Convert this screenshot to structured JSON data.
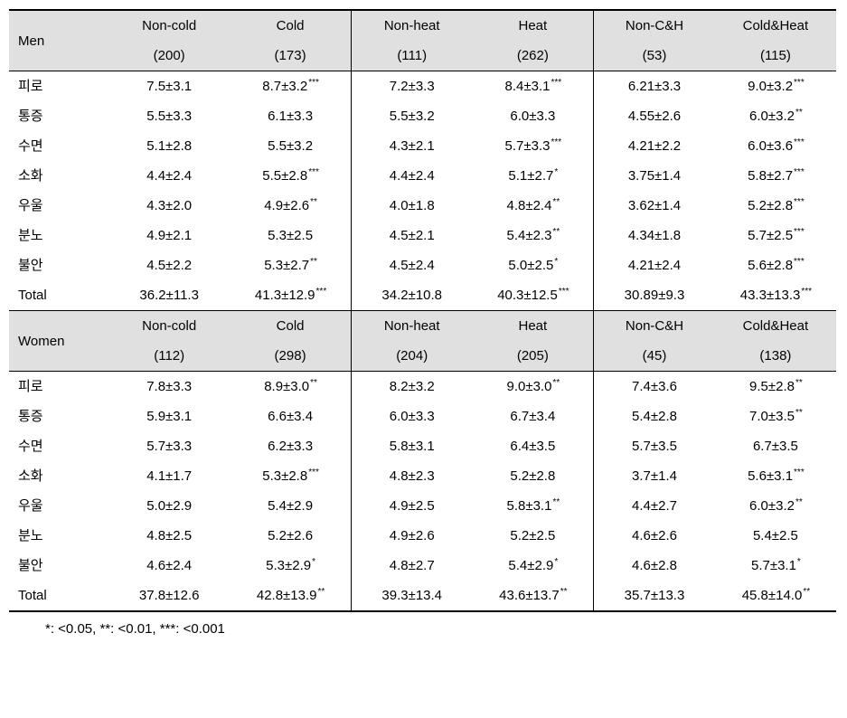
{
  "sections": [
    {
      "label": "Men",
      "columns": [
        {
          "name": "Non-cold",
          "n": "(200)"
        },
        {
          "name": "Cold",
          "n": "(173)"
        },
        {
          "name": "Non-heat",
          "n": "(111)"
        },
        {
          "name": "Heat",
          "n": "(262)"
        },
        {
          "name": "Non-C&H",
          "n": "(53)"
        },
        {
          "name": "Cold&Heat",
          "n": "(115)"
        }
      ],
      "rows": [
        {
          "label": "피로",
          "cells": [
            {
              "v": "7.5±3.1",
              "s": ""
            },
            {
              "v": "8.7±3.2",
              "s": "***"
            },
            {
              "v": "7.2±3.3",
              "s": ""
            },
            {
              "v": "8.4±3.1",
              "s": "***"
            },
            {
              "v": "6.21±3.3",
              "s": ""
            },
            {
              "v": "9.0±3.2",
              "s": "***"
            }
          ]
        },
        {
          "label": "통증",
          "cells": [
            {
              "v": "5.5±3.3",
              "s": ""
            },
            {
              "v": "6.1±3.3",
              "s": ""
            },
            {
              "v": "5.5±3.2",
              "s": ""
            },
            {
              "v": "6.0±3.3",
              "s": ""
            },
            {
              "v": "4.55±2.6",
              "s": ""
            },
            {
              "v": "6.0±3.2",
              "s": "**"
            }
          ]
        },
        {
          "label": "수면",
          "cells": [
            {
              "v": "5.1±2.8",
              "s": ""
            },
            {
              "v": "5.5±3.2",
              "s": ""
            },
            {
              "v": "4.3±2.1",
              "s": ""
            },
            {
              "v": "5.7±3.3",
              "s": "***"
            },
            {
              "v": "4.21±2.2",
              "s": ""
            },
            {
              "v": "6.0±3.6",
              "s": "***"
            }
          ]
        },
        {
          "label": "소화",
          "cells": [
            {
              "v": "4.4±2.4",
              "s": ""
            },
            {
              "v": "5.5±2.8",
              "s": "***"
            },
            {
              "v": "4.4±2.4",
              "s": ""
            },
            {
              "v": "5.1±2.7",
              "s": "*"
            },
            {
              "v": "3.75±1.4",
              "s": ""
            },
            {
              "v": "5.8±2.7",
              "s": "***"
            }
          ]
        },
        {
          "label": "우울",
          "cells": [
            {
              "v": "4.3±2.0",
              "s": ""
            },
            {
              "v": "4.9±2.6",
              "s": "**"
            },
            {
              "v": "4.0±1.8",
              "s": ""
            },
            {
              "v": "4.8±2.4",
              "s": "**"
            },
            {
              "v": "3.62±1.4",
              "s": ""
            },
            {
              "v": "5.2±2.8",
              "s": "***"
            }
          ]
        },
        {
          "label": "분노",
          "cells": [
            {
              "v": "4.9±2.1",
              "s": ""
            },
            {
              "v": "5.3±2.5",
              "s": ""
            },
            {
              "v": "4.5±2.1",
              "s": ""
            },
            {
              "v": "5.4±2.3",
              "s": "**"
            },
            {
              "v": "4.34±1.8",
              "s": ""
            },
            {
              "v": "5.7±2.5",
              "s": "***"
            }
          ]
        },
        {
          "label": "불안",
          "cells": [
            {
              "v": "4.5±2.2",
              "s": ""
            },
            {
              "v": "5.3±2.7",
              "s": "**"
            },
            {
              "v": "4.5±2.4",
              "s": ""
            },
            {
              "v": "5.0±2.5",
              "s": "*"
            },
            {
              "v": "4.21±2.4",
              "s": ""
            },
            {
              "v": "5.6±2.8",
              "s": "***"
            }
          ]
        },
        {
          "label": "Total",
          "cells": [
            {
              "v": "36.2±11.3",
              "s": ""
            },
            {
              "v": "41.3±12.9",
              "s": "***"
            },
            {
              "v": "34.2±10.8",
              "s": ""
            },
            {
              "v": "40.3±12.5",
              "s": "***"
            },
            {
              "v": "30.89±9.3",
              "s": ""
            },
            {
              "v": "43.3±13.3",
              "s": "***"
            }
          ]
        }
      ]
    },
    {
      "label": "Women",
      "columns": [
        {
          "name": "Non-cold",
          "n": "(112)"
        },
        {
          "name": "Cold",
          "n": "(298)"
        },
        {
          "name": "Non-heat",
          "n": "(204)"
        },
        {
          "name": "Heat",
          "n": "(205)"
        },
        {
          "name": "Non-C&H",
          "n": "(45)"
        },
        {
          "name": "Cold&Heat",
          "n": "(138)"
        }
      ],
      "rows": [
        {
          "label": "피로",
          "cells": [
            {
              "v": "7.8±3.3",
              "s": ""
            },
            {
              "v": "8.9±3.0",
              "s": "**"
            },
            {
              "v": "8.2±3.2",
              "s": ""
            },
            {
              "v": "9.0±3.0",
              "s": "**"
            },
            {
              "v": "7.4±3.6",
              "s": ""
            },
            {
              "v": "9.5±2.8",
              "s": "**"
            }
          ]
        },
        {
          "label": "통증",
          "cells": [
            {
              "v": "5.9±3.1",
              "s": ""
            },
            {
              "v": "6.6±3.4",
              "s": ""
            },
            {
              "v": "6.0±3.3",
              "s": ""
            },
            {
              "v": "6.7±3.4",
              "s": ""
            },
            {
              "v": "5.4±2.8",
              "s": ""
            },
            {
              "v": "7.0±3.5",
              "s": "**"
            }
          ]
        },
        {
          "label": "수면",
          "cells": [
            {
              "v": "5.7±3.3",
              "s": ""
            },
            {
              "v": "6.2±3.3",
              "s": ""
            },
            {
              "v": "5.8±3.1",
              "s": ""
            },
            {
              "v": "6.4±3.5",
              "s": ""
            },
            {
              "v": "5.7±3.5",
              "s": ""
            },
            {
              "v": "6.7±3.5",
              "s": ""
            }
          ]
        },
        {
          "label": "소화",
          "cells": [
            {
              "v": "4.1±1.7",
              "s": ""
            },
            {
              "v": "5.3±2.8",
              "s": "***"
            },
            {
              "v": "4.8±2.3",
              "s": ""
            },
            {
              "v": "5.2±2.8",
              "s": ""
            },
            {
              "v": "3.7±1.4",
              "s": ""
            },
            {
              "v": "5.6±3.1",
              "s": "***"
            }
          ]
        },
        {
          "label": "우울",
          "cells": [
            {
              "v": "5.0±2.9",
              "s": ""
            },
            {
              "v": "5.4±2.9",
              "s": ""
            },
            {
              "v": "4.9±2.5",
              "s": ""
            },
            {
              "v": "5.8±3.1",
              "s": "**"
            },
            {
              "v": "4.4±2.7",
              "s": ""
            },
            {
              "v": "6.0±3.2",
              "s": "**"
            }
          ]
        },
        {
          "label": "분노",
          "cells": [
            {
              "v": "4.8±2.5",
              "s": ""
            },
            {
              "v": "5.2±2.6",
              "s": ""
            },
            {
              "v": "4.9±2.6",
              "s": ""
            },
            {
              "v": "5.2±2.5",
              "s": ""
            },
            {
              "v": "4.6±2.6",
              "s": ""
            },
            {
              "v": "5.4±2.5",
              "s": ""
            }
          ]
        },
        {
          "label": "불안",
          "cells": [
            {
              "v": "4.6±2.4",
              "s": ""
            },
            {
              "v": "5.3±2.9",
              "s": "*"
            },
            {
              "v": "4.8±2.7",
              "s": ""
            },
            {
              "v": "5.4±2.9",
              "s": "*"
            },
            {
              "v": "4.6±2.8",
              "s": ""
            },
            {
              "v": "5.7±3.1",
              "s": "*"
            }
          ]
        },
        {
          "label": "Total",
          "cells": [
            {
              "v": "37.8±12.6",
              "s": ""
            },
            {
              "v": "42.8±13.9",
              "s": "**"
            },
            {
              "v": "39.3±13.4",
              "s": ""
            },
            {
              "v": "43.6±13.7",
              "s": "**"
            },
            {
              "v": "35.7±13.3",
              "s": ""
            },
            {
              "v": "45.8±14.0",
              "s": "**"
            }
          ]
        }
      ]
    }
  ],
  "footnote": "*: <0.05, **: <0.01, ***: <0.001",
  "borderedCols": [
    2,
    4
  ]
}
